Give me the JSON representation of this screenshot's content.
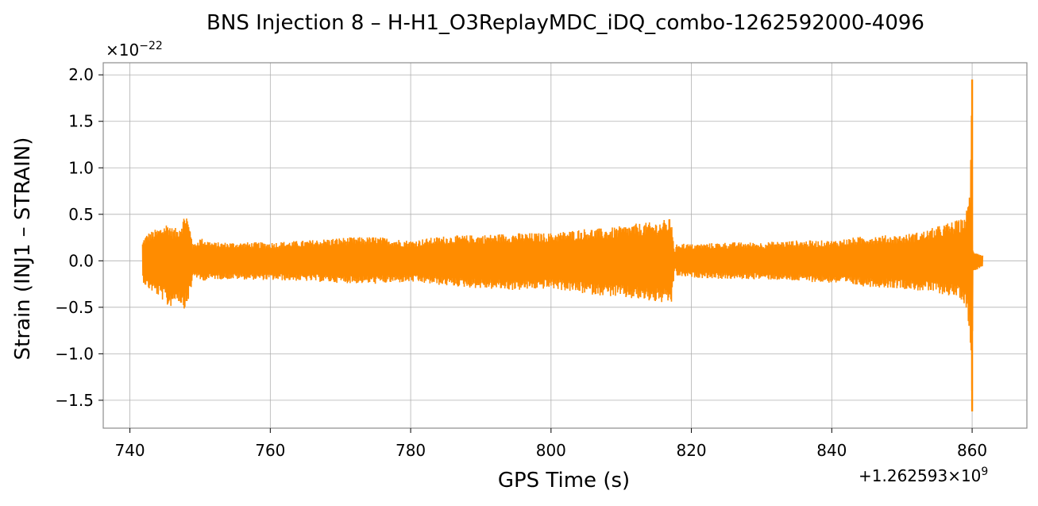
{
  "chart_data": {
    "type": "line",
    "title": "BNS Injection 8 – H-H1_O3ReplayMDC_iDQ_combo-1262592000-4096",
    "xlabel": "GPS Time (s)",
    "ylabel": "Strain (INJ1 – STRAIN)",
    "x_offset_label": "+1.262593×10",
    "x_offset_exponent": "9",
    "y_scale_label": "×10",
    "y_scale_exponent": "−22",
    "xlim": [
      736.2,
      867.8
    ],
    "ylim": [
      -1.8,
      2.13
    ],
    "xticks": [
      740,
      760,
      780,
      800,
      820,
      840,
      860
    ],
    "xtick_labels": [
      "740",
      "760",
      "780",
      "800",
      "820",
      "840",
      "860"
    ],
    "yticks": [
      -1.5,
      -1.0,
      -0.5,
      0.0,
      0.5,
      1.0,
      1.5,
      2.0
    ],
    "ytick_labels": [
      "−1.5",
      "−1.0",
      "−0.5",
      "0.0",
      "0.5",
      "1.0",
      "1.5",
      "2.0"
    ],
    "grid": true,
    "series": [
      {
        "color": "#ff8c00",
        "envelope_x": [
          741.8,
          742.0,
          742.5,
          744.0,
          745.0,
          745.5,
          746.0,
          746.7,
          747.5,
          748.0,
          748.4,
          748.8,
          749.0,
          750.0,
          752.0,
          755.0,
          760.0,
          765.0,
          770.0,
          775.0,
          780.0,
          785.0,
          790.0,
          795.0,
          800.0,
          805.0,
          808.0,
          812.0,
          815.0,
          817.2,
          817.6,
          818.0,
          820.0,
          825.0,
          830.0,
          835.0,
          840.0,
          845.0,
          850.0,
          853.0,
          855.0,
          857.0,
          858.5,
          859.0,
          859.4,
          859.7,
          859.85,
          860.0,
          860.1,
          860.3,
          860.6,
          861.0,
          861.5
        ],
        "upper": [
          0.2,
          0.25,
          0.3,
          0.35,
          0.4,
          0.42,
          0.36,
          0.35,
          0.45,
          0.55,
          0.4,
          0.3,
          0.17,
          0.25,
          0.2,
          0.2,
          0.2,
          0.22,
          0.25,
          0.26,
          0.22,
          0.27,
          0.28,
          0.3,
          0.3,
          0.35,
          0.35,
          0.4,
          0.42,
          0.46,
          0.1,
          0.2,
          0.18,
          0.2,
          0.2,
          0.22,
          0.22,
          0.27,
          0.28,
          0.32,
          0.37,
          0.42,
          0.45,
          0.5,
          0.6,
          0.9,
          1.5,
          1.95,
          0.12,
          0.1,
          0.1,
          0.08,
          0.06
        ],
        "lower": [
          -0.2,
          -0.25,
          -0.3,
          -0.38,
          -0.45,
          -0.52,
          -0.48,
          -0.42,
          -0.5,
          -0.53,
          -0.4,
          -0.3,
          -0.15,
          -0.22,
          -0.2,
          -0.2,
          -0.21,
          -0.22,
          -0.24,
          -0.25,
          -0.23,
          -0.27,
          -0.3,
          -0.32,
          -0.3,
          -0.36,
          -0.38,
          -0.42,
          -0.45,
          -0.47,
          -0.1,
          -0.17,
          -0.18,
          -0.2,
          -0.2,
          -0.22,
          -0.24,
          -0.28,
          -0.3,
          -0.33,
          -0.35,
          -0.38,
          -0.42,
          -0.48,
          -0.6,
          -0.9,
          -1.3,
          -1.62,
          -0.12,
          -0.1,
          -0.1,
          -0.08,
          -0.06
        ]
      }
    ]
  }
}
